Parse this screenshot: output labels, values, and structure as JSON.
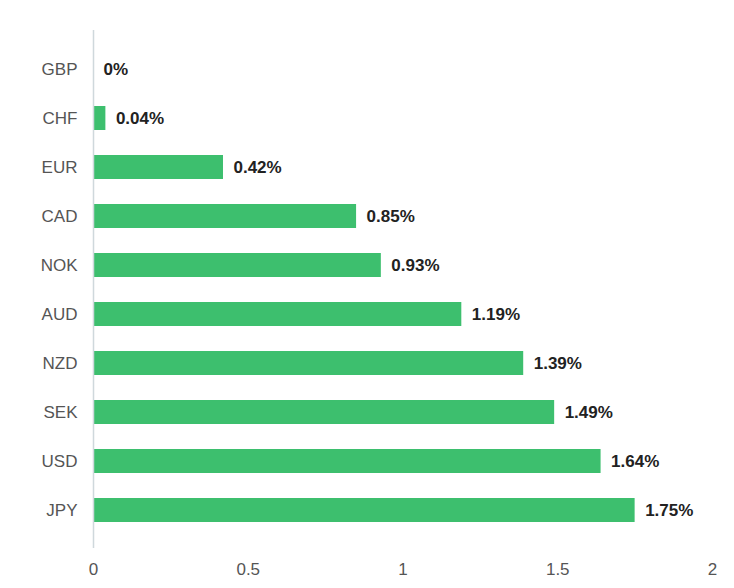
{
  "chart_data": {
    "type": "bar",
    "orientation": "horizontal",
    "categories": [
      "GBP",
      "CHF",
      "EUR",
      "CAD",
      "NOK",
      "AUD",
      "NZD",
      "SEK",
      "USD",
      "JPY"
    ],
    "values": [
      0,
      0.04,
      0.42,
      0.85,
      0.93,
      1.19,
      1.39,
      1.49,
      1.64,
      1.75
    ],
    "value_labels": [
      "0%",
      "0.04%",
      "0.42%",
      "0.85%",
      "0.93%",
      "1.19%",
      "1.39%",
      "1.49%",
      "1.64%",
      "1.75%"
    ],
    "color": "#3dbf6e",
    "xlim": [
      0,
      2
    ],
    "xticks": [
      0,
      0.5,
      1,
      1.5,
      2
    ],
    "grid": false,
    "data_labels": true
  }
}
